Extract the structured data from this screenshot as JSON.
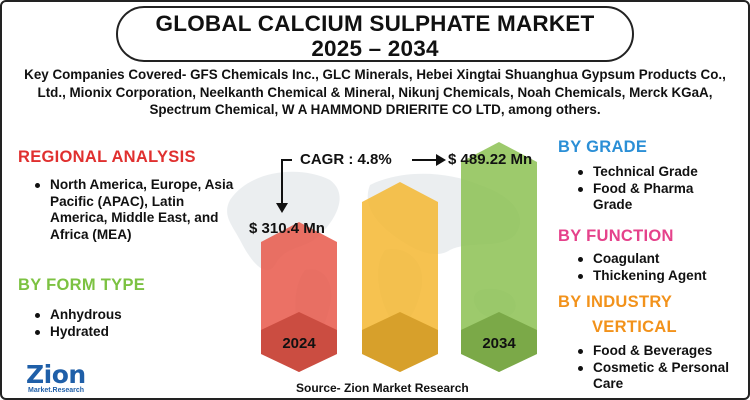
{
  "title": {
    "line1": "GLOBAL CALCIUM SULPHATE MARKET",
    "line2": "2025 – 2034"
  },
  "companies": "Key Companies Covered- GFS Chemicals Inc., GLC Minerals, Hebei Xingtai Shuanghua Gypsum Products Co., Ltd., Mionix Corporation, Neelkanth Chemical & Mineral, Nikunj Chemicals, Noah Chemicals, Merck KGaA, Spectrum Chemical, W A HAMMOND DRIERITE CO LTD, among others.",
  "regional": {
    "title": "REGIONAL ANALYSIS",
    "items": [
      "North America, Europe, Asia Pacific (APAC), Latin America, Middle East, and Africa (MEA)"
    ]
  },
  "form_type": {
    "title": "BY FORM TYPE",
    "items": [
      "Anhydrous",
      "Hydrated"
    ]
  },
  "grade": {
    "title": "BY GRADE",
    "items": [
      "Technical Grade",
      "Food & Pharma Grade"
    ]
  },
  "function": {
    "title": "BY FUNCTION",
    "items": [
      "Coagulant",
      "Thickening Agent"
    ]
  },
  "industry": {
    "title_line1": "BY INDUSTRY",
    "title_line2": "VERTICAL",
    "items": [
      "Food & Beverages",
      "Cosmetic & Personal Care"
    ]
  },
  "cagr_text": "CAGR : 4.8%",
  "source": "Source- Zion Market Research",
  "logo": {
    "main": "Zion",
    "sub": "Market.Research"
  },
  "colors": {
    "red": "#e0302f",
    "green": "#7cc242",
    "blue": "#2b8fd6",
    "pink": "#e5428b",
    "orange": "#f2921b",
    "bar_2024": "#e8584a",
    "bar_mid": "#f5b731",
    "bar_2034": "#8cc152"
  },
  "chart_data": {
    "type": "bar",
    "categories": [
      "2024",
      "",
      "2034"
    ],
    "values": [
      310.4,
      null,
      489.22
    ],
    "value_labels": [
      "$ 310.4 Mn",
      "",
      "$ 489.22 Mn"
    ],
    "unit": "Mn",
    "annotation": "CAGR : 4.8%"
  }
}
